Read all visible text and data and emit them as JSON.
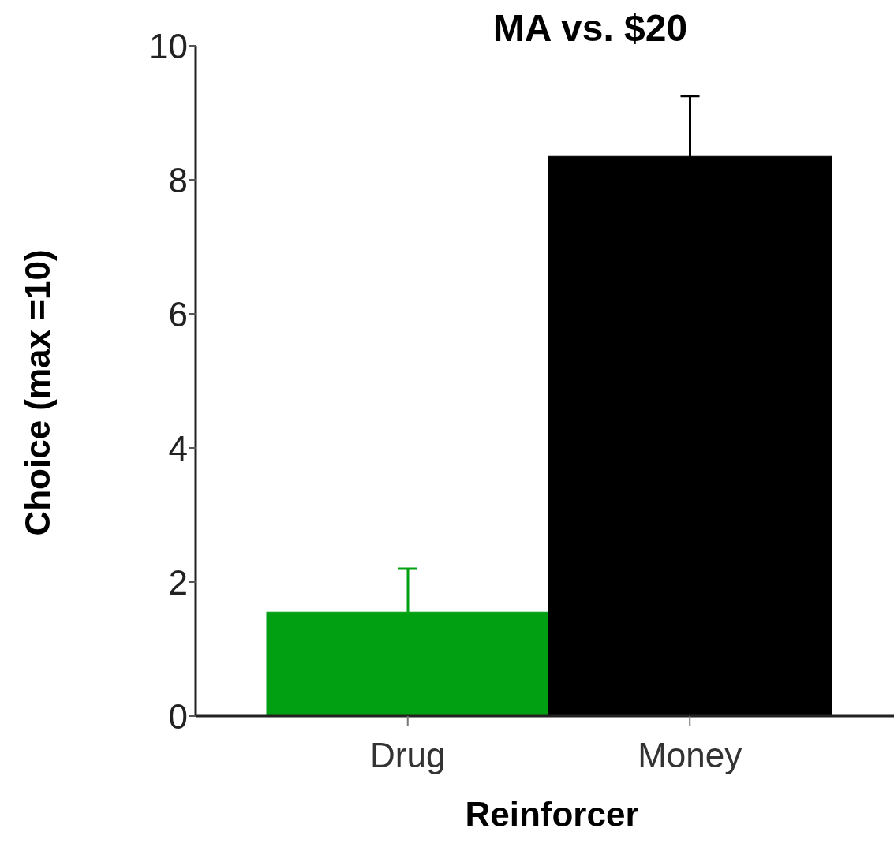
{
  "chart_data": {
    "type": "bar",
    "title": "MA  vs.  $20",
    "xlabel": "Reinforcer",
    "ylabel": "Choice  (max =10)",
    "categories": [
      "Drug",
      "Money"
    ],
    "values": [
      1.55,
      8.35
    ],
    "colors": [
      "#00a012",
      "#000000"
    ],
    "errors": [
      [
        1.55,
        2.2
      ],
      [
        8.35,
        9.25
      ]
    ],
    "ylim": [
      0,
      10
    ],
    "yticks": [
      0,
      2,
      4,
      6,
      8,
      10
    ],
    "grid": false,
    "legend": false
  }
}
